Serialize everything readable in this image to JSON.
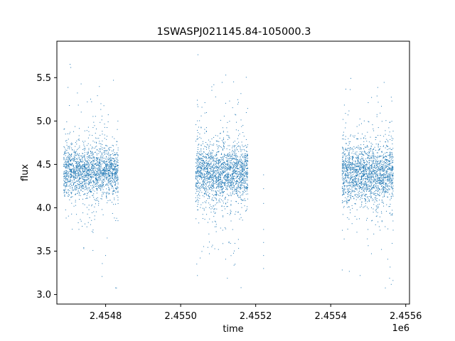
{
  "chart_data": {
    "type": "scatter",
    "title": "1SWASPJ021145.84-105000.3",
    "xlabel": "time",
    "ylabel": "flux",
    "x_offset_label": "1e6",
    "xlim": [
      2454670,
      2455610
    ],
    "ylim": [
      2.89,
      5.92
    ],
    "x_ticks": [
      2454800,
      2455000,
      2455200,
      2455400,
      2455600
    ],
    "x_tick_labels": [
      "2.4548",
      "2.4550",
      "2.4552",
      "2.4554",
      "2.4556"
    ],
    "y_ticks": [
      3.0,
      3.5,
      4.0,
      4.5,
      5.0,
      5.5
    ],
    "y_tick_labels": [
      "3.0",
      "3.5",
      "4.0",
      "4.5",
      "5.0",
      "5.5"
    ],
    "grid": false,
    "legend": "none",
    "marker_color": "#1f77b4",
    "observing_seasons": [
      {
        "x_start": 2454688,
        "x_end": 2454835,
        "y_center": 4.42,
        "y_spread": 0.14
      },
      {
        "x_start": 2455040,
        "x_end": 2455180,
        "y_center": 4.4,
        "y_spread": 0.16
      },
      {
        "x_start": 2455430,
        "x_end": 2455568,
        "y_center": 4.4,
        "y_spread": 0.16
      }
    ],
    "isolated_points": [
      {
        "x": 2455221,
        "y": 4.38
      },
      {
        "x": 2455221,
        "y": 4.22
      },
      {
        "x": 2455221,
        "y": 4.05
      },
      {
        "x": 2455221,
        "y": 3.75
      },
      {
        "x": 2455221,
        "y": 3.6
      },
      {
        "x": 2455221,
        "y": 3.45
      },
      {
        "x": 2455221,
        "y": 3.3
      }
    ]
  }
}
